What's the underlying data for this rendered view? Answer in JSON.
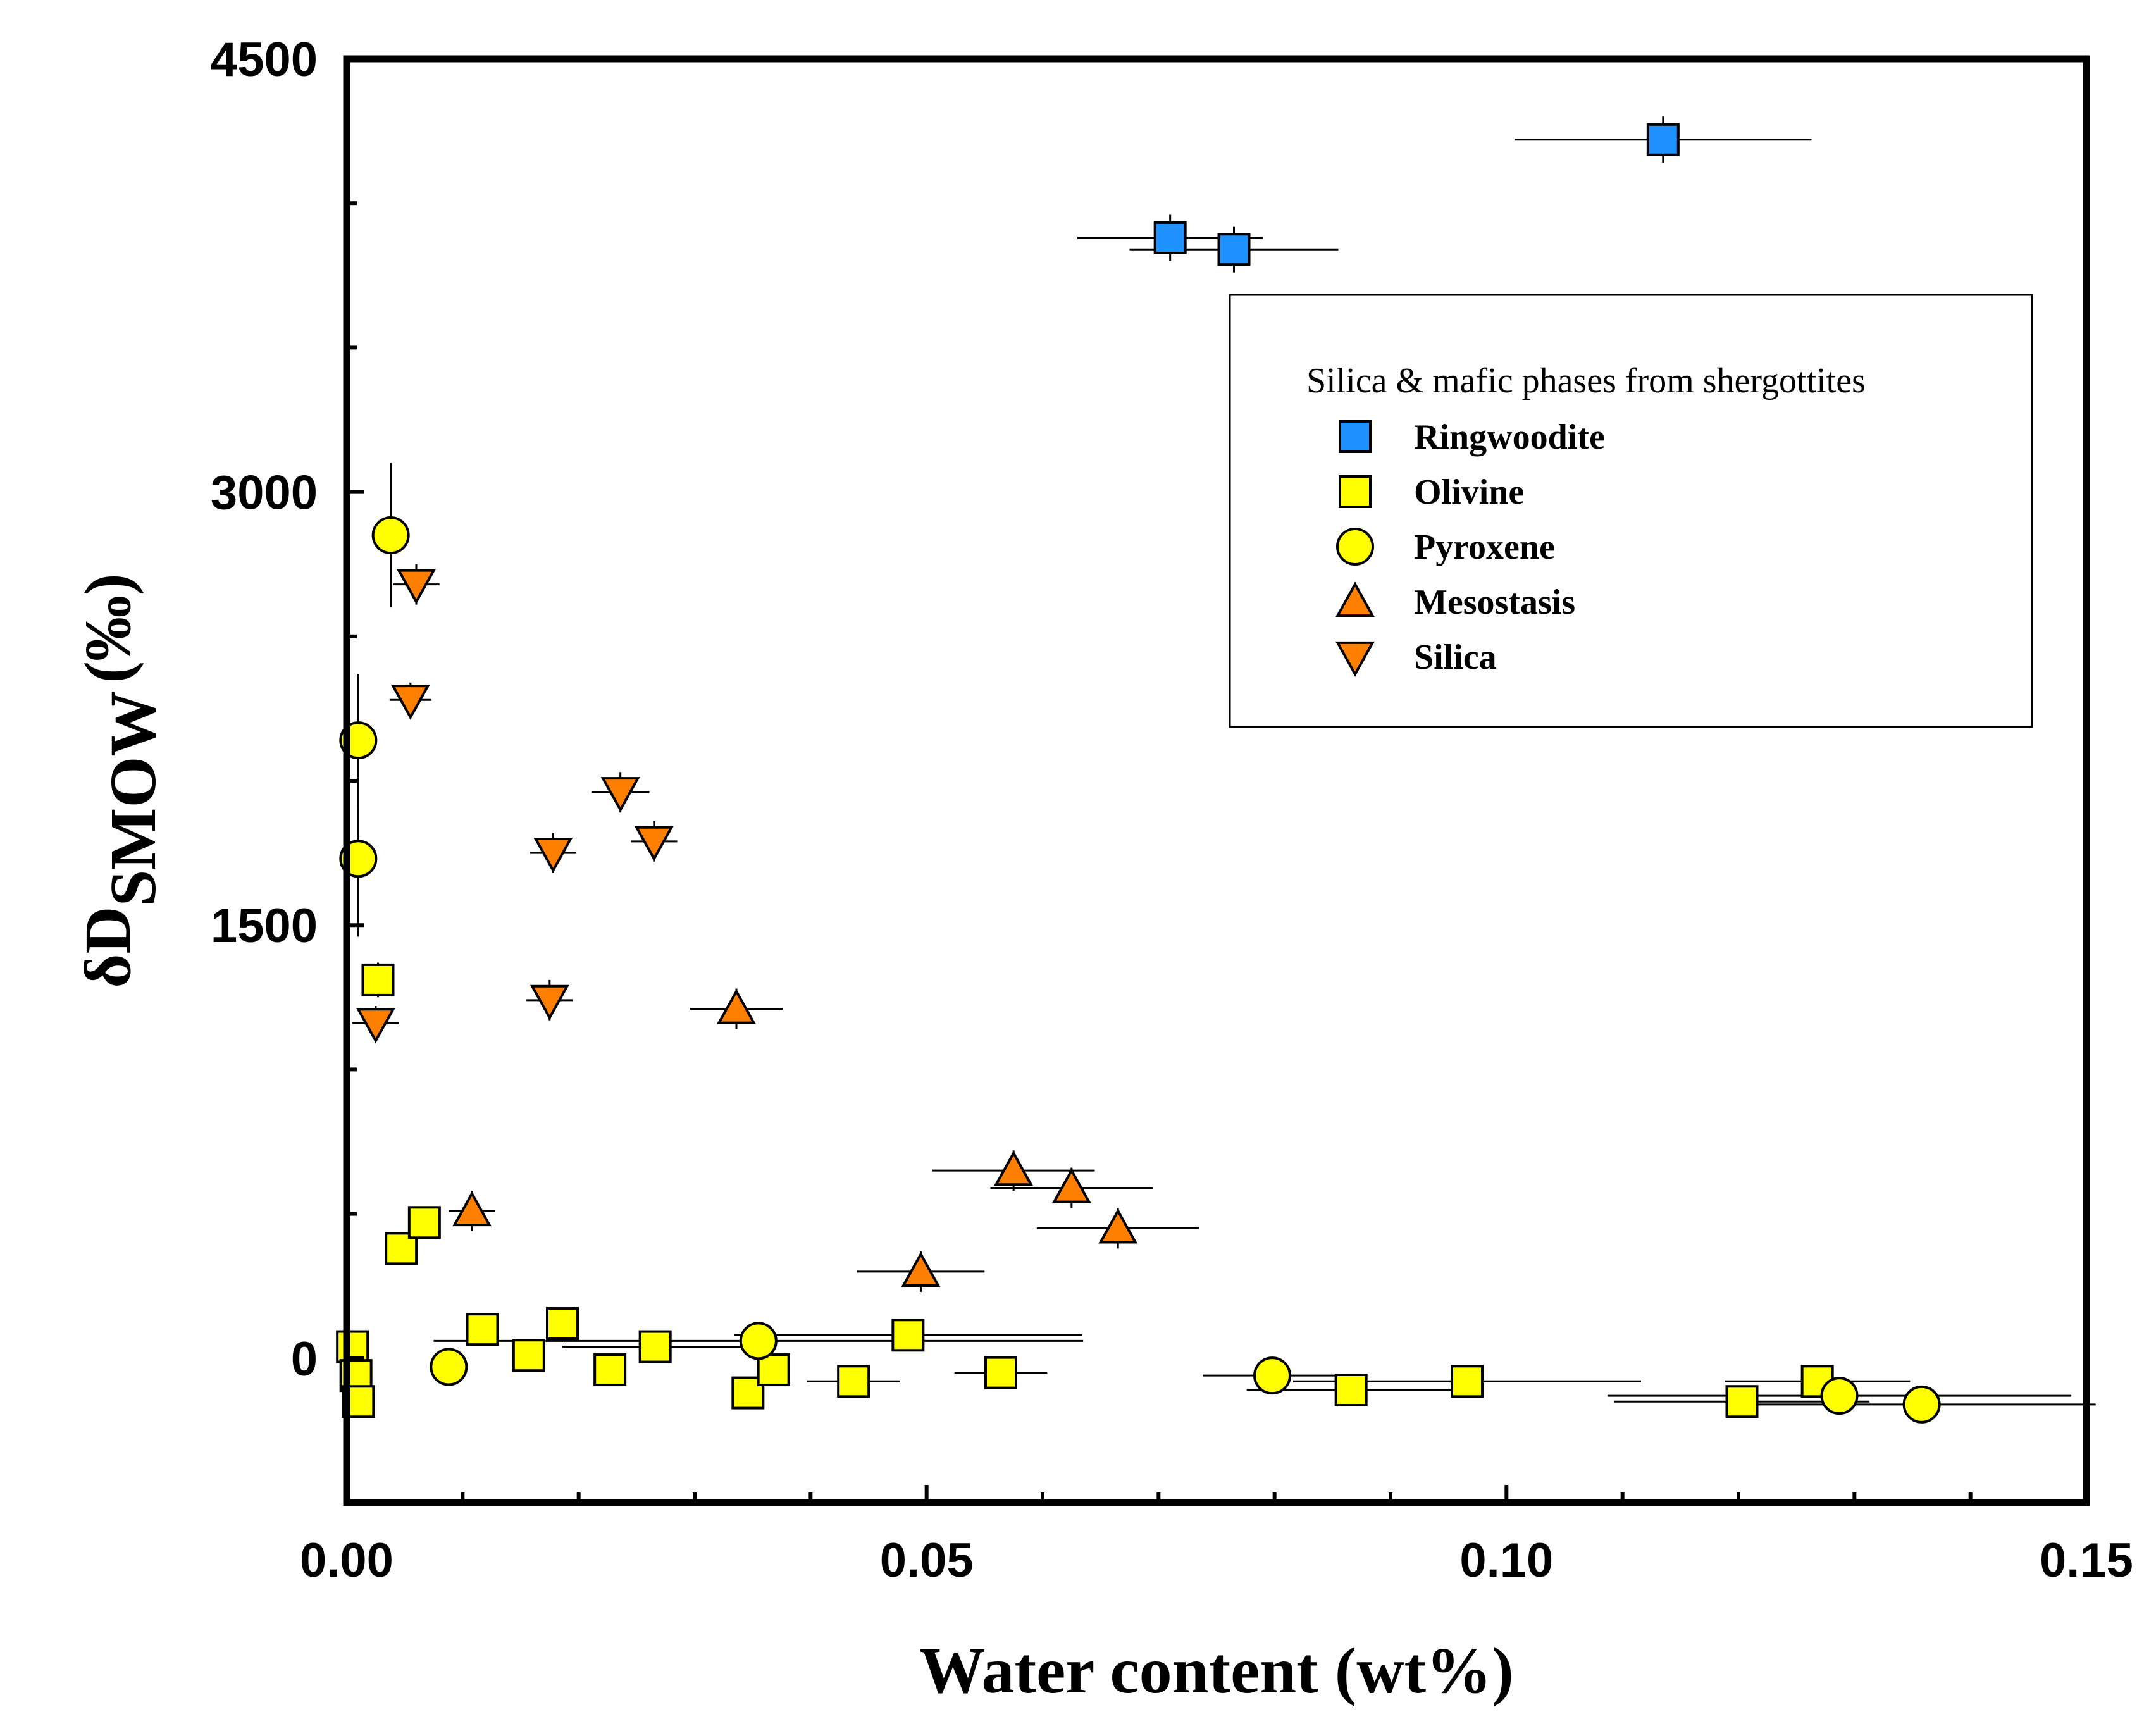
{
  "chart_data": {
    "type": "scatter",
    "title": "",
    "xlabel": "Water content (wt%)",
    "ylabel": {
      "main": "δD",
      "subscript": "SMOW",
      "unit": "(‰)"
    },
    "xlim": [
      0,
      0.15
    ],
    "ylim": [
      -500,
      4500
    ],
    "xticks": [
      {
        "value": 0,
        "label": "0.00"
      },
      {
        "value": 0.05,
        "label": "0.05"
      },
      {
        "value": 0.1,
        "label": "0.10"
      },
      {
        "value": 0.15,
        "label": "0.15"
      }
    ],
    "yticks": [
      {
        "value": 0,
        "label": "0"
      },
      {
        "value": 1500,
        "label": "1500"
      },
      {
        "value": 3000,
        "label": "3000"
      },
      {
        "value": 4500,
        "label": "4500"
      }
    ],
    "x_minor_step": 0.01,
    "y_minor_step": 500,
    "legend": {
      "title": "Silica & mafic phases from shergottites",
      "position": "top-right"
    },
    "series": [
      {
        "name": "Ringwoodite",
        "marker": "square",
        "color": "#1E90FF",
        "points": [
          {
            "x": 0.071,
            "y": 3880,
            "xerr": 0.008,
            "yerr": 80
          },
          {
            "x": 0.0765,
            "y": 3840,
            "xerr": 0.009,
            "yerr": 80
          },
          {
            "x": 0.1135,
            "y": 4220,
            "xerr": 0.0128,
            "yerr": 80
          }
        ]
      },
      {
        "name": "Olivine",
        "marker": "square",
        "color": "#FFFF00",
        "points": [
          {
            "x": 0.0005,
            "y": 40,
            "xerr": 0,
            "yerr": 0
          },
          {
            "x": 0.0008,
            "y": -60,
            "xerr": 0,
            "yerr": 0
          },
          {
            "x": 0.001,
            "y": -150,
            "xerr": 0,
            "yerr": 0
          },
          {
            "x": 0.0027,
            "y": 1310,
            "xerr": 0,
            "yerr": 60
          },
          {
            "x": 0.0047,
            "y": 380,
            "xerr": 0,
            "yerr": 0
          },
          {
            "x": 0.0067,
            "y": 470,
            "xerr": 0,
            "yerr": 0
          },
          {
            "x": 0.0117,
            "y": 100,
            "xerr": 0,
            "yerr": 0
          },
          {
            "x": 0.0157,
            "y": 10,
            "xerr": 0,
            "yerr": 0
          },
          {
            "x": 0.0186,
            "y": 120,
            "xerr": 0.001,
            "yerr": 0
          },
          {
            "x": 0.0227,
            "y": -40,
            "xerr": 0,
            "yerr": 0
          },
          {
            "x": 0.0266,
            "y": 40,
            "xerr": 0.008,
            "yerr": 0
          },
          {
            "x": 0.0346,
            "y": -120,
            "xerr": 0,
            "yerr": 0
          },
          {
            "x": 0.0368,
            "y": -40,
            "xerr": 0,
            "yerr": 0
          },
          {
            "x": 0.0437,
            "y": -80,
            "xerr": 0.004,
            "yerr": 0
          },
          {
            "x": 0.0484,
            "y": 80,
            "xerr": 0.015,
            "yerr": 0
          },
          {
            "x": 0.0564,
            "y": -50,
            "xerr": 0.004,
            "yerr": 0
          },
          {
            "x": 0.0866,
            "y": -110,
            "xerr": 0.009,
            "yerr": 0
          },
          {
            "x": 0.0966,
            "y": -80,
            "xerr": 0.015,
            "yerr": 0
          },
          {
            "x": 0.1203,
            "y": -150,
            "xerr": 0.011,
            "yerr": 0
          },
          {
            "x": 0.1268,
            "y": -80,
            "xerr": 0.008,
            "yerr": 0
          }
        ]
      },
      {
        "name": "Pyroxene",
        "marker": "circle",
        "color": "#FFFF00",
        "points": [
          {
            "x": 0.0038,
            "y": 2850,
            "xerr": 0,
            "yerr": 250
          },
          {
            "x": 0.001,
            "y": 2140,
            "xerr": 0,
            "yerr": 230
          },
          {
            "x": 0.001,
            "y": 1730,
            "xerr": 0,
            "yerr": 270
          },
          {
            "x": 0.0088,
            "y": -30,
            "xerr": 0,
            "yerr": 0
          },
          {
            "x": 0.0355,
            "y": 60,
            "xerr": 0.028,
            "yerr": 0
          },
          {
            "x": 0.0798,
            "y": -60,
            "xerr": 0.006,
            "yerr": 0
          },
          {
            "x": 0.1287,
            "y": -130,
            "xerr": 0.02,
            "yerr": 0
          },
          {
            "x": 0.1358,
            "y": -160,
            "xerr": 0.015,
            "yerr": 0
          }
        ]
      },
      {
        "name": "Mesostasis",
        "marker": "triangle-up",
        "color": "#FF7F00",
        "points": [
          {
            "x": 0.0108,
            "y": 510,
            "xerr": 0.002,
            "yerr": 70
          },
          {
            "x": 0.0336,
            "y": 1210,
            "xerr": 0.004,
            "yerr": 70
          },
          {
            "x": 0.0495,
            "y": 300,
            "xerr": 0.0055,
            "yerr": 70
          },
          {
            "x": 0.0575,
            "y": 650,
            "xerr": 0.007,
            "yerr": 70
          },
          {
            "x": 0.0625,
            "y": 590,
            "xerr": 0.007,
            "yerr": 70
          },
          {
            "x": 0.0665,
            "y": 450,
            "xerr": 0.007,
            "yerr": 70
          }
        ]
      },
      {
        "name": "Silica",
        "marker": "triangle-down",
        "color": "#FF7F00",
        "points": [
          {
            "x": 0.0025,
            "y": 1160,
            "xerr": 0.002,
            "yerr": 60
          },
          {
            "x": 0.0055,
            "y": 2280,
            "xerr": 0.0018,
            "yerr": 60
          },
          {
            "x": 0.006,
            "y": 2680,
            "xerr": 0.002,
            "yerr": 70
          },
          {
            "x": 0.0178,
            "y": 1750,
            "xerr": 0.002,
            "yerr": 70
          },
          {
            "x": 0.0175,
            "y": 1240,
            "xerr": 0.002,
            "yerr": 70
          },
          {
            "x": 0.0236,
            "y": 1960,
            "xerr": 0.0025,
            "yerr": 70
          },
          {
            "x": 0.0265,
            "y": 1790,
            "xerr": 0.002,
            "yerr": 70
          }
        ]
      }
    ]
  }
}
